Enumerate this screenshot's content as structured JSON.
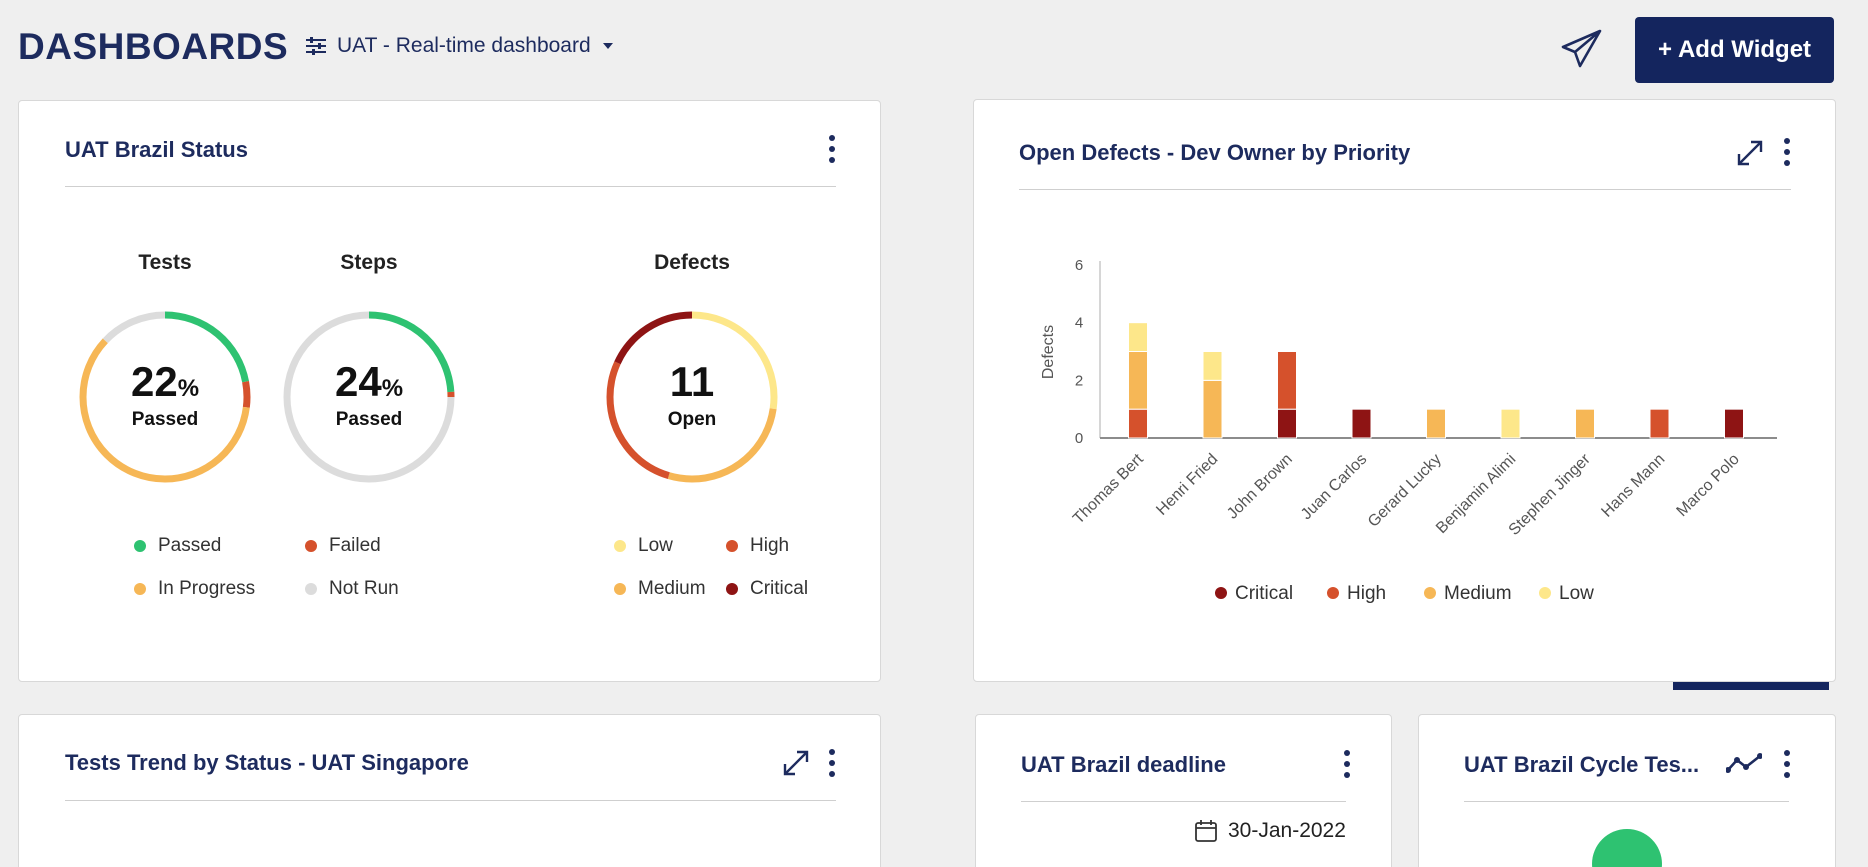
{
  "header": {
    "title": "DASHBOARDS",
    "dashboard_name": "UAT - Real-time dashboard",
    "add_widget_label": "Add Widget"
  },
  "colors": {
    "brand": "#14255e",
    "passed": "#2ec271",
    "failed": "#d5512c",
    "in_progress": "#f6b756",
    "not_run": "#dcdcdc",
    "low": "#fde78a",
    "medium": "#f6b756",
    "high": "#d5512c",
    "critical": "#8e1414"
  },
  "status_widget": {
    "title": "UAT Brazil Status",
    "tests": {
      "heading": "Tests",
      "value": "22",
      "unit": "%",
      "sub": "Passed",
      "segments": {
        "passed": 22,
        "failed": 5,
        "in_progress": 60,
        "not_run": 13
      }
    },
    "steps": {
      "heading": "Steps",
      "value": "24",
      "unit": "%",
      "sub": "Passed",
      "segments": {
        "passed": 24,
        "failed": 1,
        "in_progress": 0,
        "not_run": 75
      }
    },
    "defects": {
      "heading": "Defects",
      "value": "11",
      "sub": "Open",
      "segments": {
        "low": 3,
        "medium": 3,
        "high": 3,
        "critical": 2
      }
    },
    "legend_tests": [
      {
        "label": "Passed",
        "color": "#2ec271"
      },
      {
        "label": "Failed",
        "color": "#d5512c"
      },
      {
        "label": "In Progress",
        "color": "#f6b756"
      },
      {
        "label": "Not Run",
        "color": "#dcdcdc"
      }
    ],
    "legend_defects": [
      {
        "label": "Low",
        "color": "#fde78a"
      },
      {
        "label": "High",
        "color": "#d5512c"
      },
      {
        "label": "Medium",
        "color": "#f6b756"
      },
      {
        "label": "Critical",
        "color": "#8e1414"
      }
    ]
  },
  "defects_widget": {
    "title": "Open Defects - Dev Owner by Priority",
    "chart_data": {
      "type": "bar",
      "stacked": true,
      "title": "",
      "xlabel": "",
      "ylabel": "Defects",
      "ylim": [
        0,
        6
      ],
      "yticks": [
        0,
        2,
        4,
        6
      ],
      "categories": [
        "Thomas Bert",
        "Henri Fried",
        "John Brown",
        "Juan Carlos",
        "Gerard Lucky",
        "Benjamin Alimi",
        "Stephen Jinger",
        "Hans Mann",
        "Marco Polo"
      ],
      "series": [
        {
          "name": "Critical",
          "color": "#8e1414",
          "values": [
            0,
            0,
            1,
            1,
            0,
            0,
            0,
            0,
            1
          ]
        },
        {
          "name": "High",
          "color": "#d5512c",
          "values": [
            1,
            0,
            2,
            0,
            0,
            0,
            0,
            1,
            0
          ]
        },
        {
          "name": "Medium",
          "color": "#f6b756",
          "values": [
            2,
            2,
            0,
            0,
            1,
            0,
            1,
            0,
            0
          ]
        },
        {
          "name": "Low",
          "color": "#fde78a",
          "values": [
            1,
            1,
            0,
            0,
            0,
            1,
            0,
            0,
            0
          ]
        }
      ],
      "legend_position": "bottom"
    }
  },
  "trend_widget": {
    "title": "Tests Trend by Status - UAT Singapore"
  },
  "deadline_widget": {
    "title": "UAT Brazil deadline",
    "date": "30-Jan-2022"
  },
  "cycle_widget": {
    "title": "UAT Brazil Cycle Tes..."
  }
}
